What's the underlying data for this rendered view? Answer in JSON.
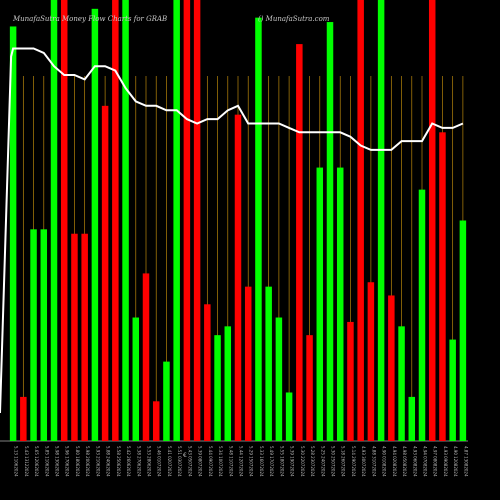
{
  "chart_data": {
    "type": "bar",
    "title": "MunafaSutra Money Flow  Charts for GRAB",
    "brand": "() MunafaSutra.com",
    "center_label": "€",
    "ylim": [
      0,
      100
    ],
    "colors": {
      "up": "#00ff00",
      "down": "#ff0000",
      "grid": "#b8860b",
      "line": "#ffffff",
      "background": "#000000"
    },
    "categories": [
      "5.13 11062024",
      "5.43 13122024",
      "5.65 12062024",
      "5.85 11062024",
      "5.98 13062024",
      "5.96 17062024",
      "5.80 18062024",
      "5.98 20062024",
      "5.93 21062024",
      "5.88 24062024",
      "5.58 25062024",
      "5.42 26062024",
      "5.38 27062024",
      "5.53 28062024",
      "5.46 01072024",
      "5.41 02072024",
      "5.51 03072024",
      "5.43 05072024",
      "5.39 08072024",
      "5.44 09072024",
      "5.34 10072024",
      "5.48 11072024",
      "5.44 12072024",
      "5.29 15072024",
      "5.33 16072024",
      "5.49 17072024",
      "5.55 18072024",
      "5.39 19072024",
      "5.30 22072024",
      "5.28 23072024",
      "5.25 24072024",
      "5.30 25072024",
      "5.18 26072024",
      "5.14 29072024",
      "4.93 30072024",
      "4.88 31072024",
      "4.90 01082024",
      "4.94 02082024",
      "4.98 05082024",
      "4.93 06082024",
      "4.94 07082024",
      "4.97 08082024",
      "4.93 09082024",
      "4.90 12082024",
      "4.87 13082024"
    ],
    "values": [
      94,
      10,
      48,
      48,
      100,
      100,
      47,
      47,
      98,
      76,
      100,
      100,
      28,
      38,
      9,
      18,
      100,
      100,
      100,
      31,
      24,
      26,
      74,
      35,
      96,
      35,
      28,
      11,
      90,
      24,
      62,
      95,
      62,
      27,
      100,
      36,
      100,
      33,
      26,
      10,
      57,
      100,
      70,
      23,
      50
    ],
    "directions": [
      "up",
      "down",
      "up",
      "up",
      "up",
      "down",
      "down",
      "down",
      "up",
      "down",
      "down",
      "up",
      "up",
      "down",
      "down",
      "up",
      "up",
      "down",
      "down",
      "down",
      "up",
      "up",
      "down",
      "down",
      "up",
      "up",
      "up",
      "up",
      "down",
      "down",
      "up",
      "up",
      "up",
      "down",
      "down",
      "down",
      "up",
      "down",
      "up",
      "up",
      "up",
      "down",
      "down",
      "up",
      "up"
    ],
    "line": [
      89,
      89,
      89,
      88,
      85,
      83,
      83,
      82,
      85,
      85,
      84,
      80,
      77,
      76,
      76,
      75,
      75,
      73,
      72,
      73,
      73,
      75,
      76,
      72,
      72,
      72,
      72,
      71,
      70,
      70,
      70,
      70,
      70,
      69,
      67,
      66,
      66,
      66,
      68,
      68,
      68,
      72,
      71,
      71,
      72
    ]
  }
}
